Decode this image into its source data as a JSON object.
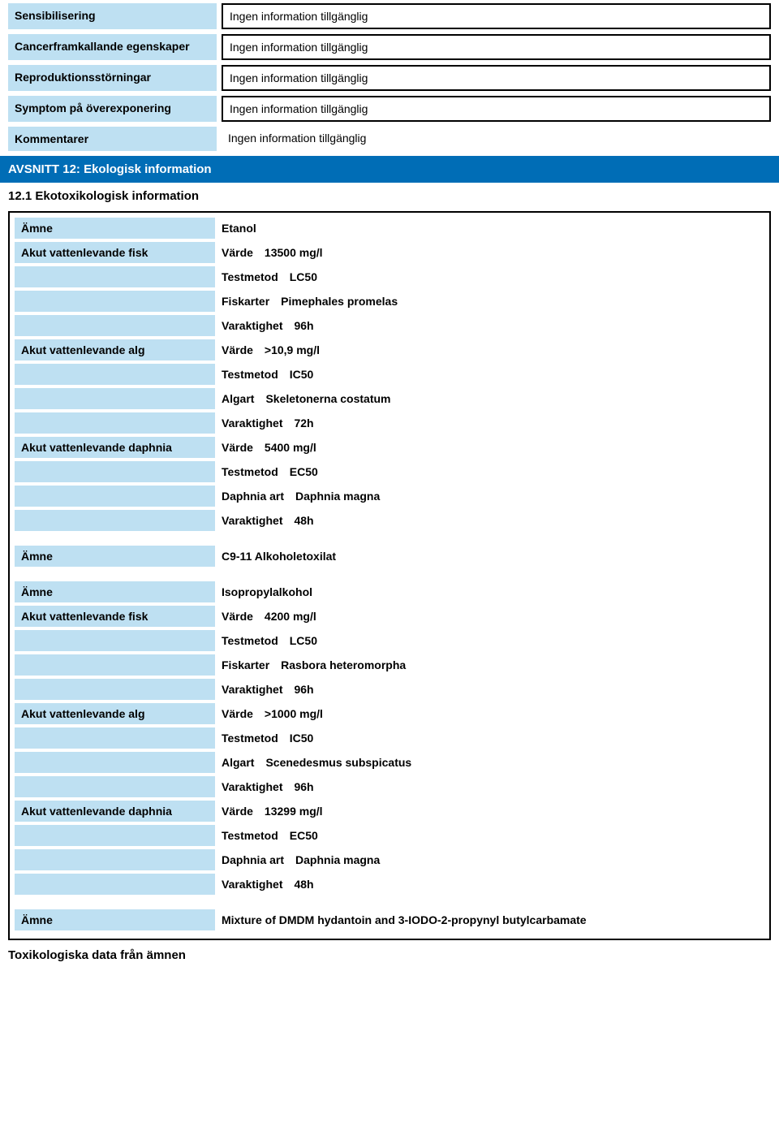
{
  "colors": {
    "label_bg": "#bee0f2",
    "banner_bg": "#006db6",
    "banner_text": "#ffffff",
    "border": "#000000",
    "page_bg": "#ffffff",
    "text": "#000000"
  },
  "top_properties": [
    {
      "label": "Sensibilisering",
      "value": "Ingen information tillgänglig",
      "bordered": true
    },
    {
      "label": "Cancerframkallande egenskaper",
      "value": "Ingen information tillgänglig",
      "bordered": true
    },
    {
      "label": "Reproduktionsstörningar",
      "value": "Ingen information tillgänglig",
      "bordered": true
    },
    {
      "label": "Symptom på överexponering",
      "value": "Ingen information tillgänglig",
      "bordered": true
    },
    {
      "label": "Kommentarer",
      "value": "Ingen information tillgänglig",
      "bordered": false
    }
  ],
  "section_banner": "AVSNITT 12: Ekologisk information",
  "subsection": "12.1 Ekotoxikologisk information",
  "box": {
    "rows": [
      {
        "label": "Ämne",
        "text": "Etanol"
      },
      {
        "label": "Akut vattenlevande fisk",
        "key": "Värde",
        "val": "13500 mg/l"
      },
      {
        "label": "",
        "key": "Testmetod",
        "val": "LC50"
      },
      {
        "label": "",
        "key": "Fiskarter",
        "val": "Pimephales promelas"
      },
      {
        "label": "",
        "key": "Varaktighet",
        "val": "96h"
      },
      {
        "label": "Akut vattenlevande alg",
        "key": "Värde",
        "val": ">10,9 mg/l"
      },
      {
        "label": "",
        "key": "Testmetod",
        "val": "IC50"
      },
      {
        "label": "",
        "key": "Algart",
        "val": "Skeletonerna costatum"
      },
      {
        "label": "",
        "key": "Varaktighet",
        "val": "72h"
      },
      {
        "label": "Akut vattenlevande daphnia",
        "key": "Värde",
        "val": "5400 mg/l"
      },
      {
        "label": "",
        "key": "Testmetod",
        "val": "EC50"
      },
      {
        "label": "",
        "key": "Daphnia art",
        "val": "Daphnia magna"
      },
      {
        "label": "",
        "key": "Varaktighet",
        "val": "48h"
      },
      {
        "label": "Ämne",
        "text": "C9-11 Alkoholetoxilat",
        "gap_before": true
      },
      {
        "label": "Ämne",
        "text": "Isopropylalkohol",
        "gap_before": true
      },
      {
        "label": "Akut vattenlevande fisk",
        "key": "Värde",
        "val": "4200 mg/l"
      },
      {
        "label": "",
        "key": "Testmetod",
        "val": "LC50"
      },
      {
        "label": "",
        "key": "Fiskarter",
        "val": "Rasbora heteromorpha"
      },
      {
        "label": "",
        "key": "Varaktighet",
        "val": "96h"
      },
      {
        "label": "Akut vattenlevande alg",
        "key": "Värde",
        "val": ">1000 mg/l"
      },
      {
        "label": "",
        "key": "Testmetod",
        "val": "IC50"
      },
      {
        "label": "",
        "key": "Algart",
        "val": "Scenedesmus subspicatus"
      },
      {
        "label": "",
        "key": "Varaktighet",
        "val": "96h"
      },
      {
        "label": "Akut vattenlevande daphnia",
        "key": "Värde",
        "val": "13299 mg/l"
      },
      {
        "label": "",
        "key": "Testmetod",
        "val": "EC50"
      },
      {
        "label": "",
        "key": "Daphnia art",
        "val": "Daphnia magna"
      },
      {
        "label": "",
        "key": "Varaktighet",
        "val": "48h"
      },
      {
        "label": "Ämne",
        "text": "Mixture of DMDM hydantoin and 3-IODO-2-propynyl butylcarbamate",
        "gap_before": true
      }
    ]
  },
  "footer_heading": "Toxikologiska data från ämnen"
}
